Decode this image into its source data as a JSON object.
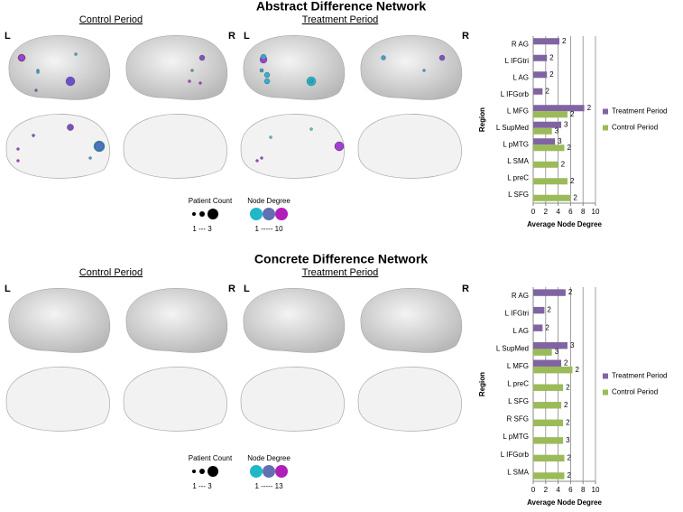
{
  "panels": [
    {
      "title": "Abstract Difference Network",
      "control_label": "Control Period",
      "treatment_label": "Treatment Period",
      "left": "L",
      "right": "R",
      "patient_count_title": "Patient Count",
      "patient_count_range": "1 --- 3",
      "node_degree_title": "Node Degree",
      "node_degree_range": "1 ----- 10"
    },
    {
      "title": "Concrete Difference Network",
      "control_label": "Control Period",
      "treatment_label": "Treatment Period",
      "left": "L",
      "right": "R",
      "patient_count_title": "Patient Count",
      "patient_count_range": "1 --- 3",
      "node_degree_title": "Node Degree",
      "node_degree_range": "1 ----- 13"
    }
  ],
  "chart_data": [
    {
      "type": "hbar",
      "x_label": "Average Node Degree",
      "y_label": "Region",
      "legend": "right",
      "grid": true,
      "categories": [
        "R AG",
        "L IFGtri",
        "L AG",
        "L IFGorb",
        "L MFG",
        "L SupMed",
        "L pMTG",
        "L SMA",
        "L preC",
        "L SFG"
      ],
      "series": [
        {
          "name": "Treatment Period",
          "color": "#8064a2",
          "values": [
            4.2,
            2.2,
            2.2,
            1.5,
            8.2,
            4.5,
            3.5,
            null,
            null,
            null
          ],
          "bar_labels": [
            2,
            2,
            2,
            2,
            2,
            3,
            3,
            null,
            null,
            null
          ]
        },
        {
          "name": "Control Period",
          "color": "#9bbb59",
          "values": [
            null,
            null,
            null,
            null,
            5.5,
            3,
            5,
            4,
            5.5,
            6
          ],
          "bar_labels": [
            null,
            null,
            null,
            null,
            2,
            3,
            2,
            2,
            2,
            2
          ]
        }
      ],
      "xlim": [
        0,
        10
      ],
      "xticks": [
        0,
        2,
        4,
        6,
        8,
        10
      ]
    },
    {
      "type": "hbar",
      "x_label": "Average Node Degree",
      "y_label": "Region",
      "legend": "right",
      "grid": true,
      "categories": [
        "R AG",
        "L IFGtri",
        "L AG",
        "L SupMed",
        "L MFG",
        "L preC",
        "L SFG",
        "R SFG",
        "L pMTG",
        "L IFGorb",
        "L SMA"
      ],
      "series": [
        {
          "name": "Treatment Period",
          "color": "#8064a2",
          "values": [
            5.2,
            1.8,
            1.5,
            5.5,
            4.5,
            null,
            null,
            null,
            null,
            null,
            null
          ],
          "bar_labels": [
            2,
            2,
            2,
            3,
            2,
            null,
            null,
            null,
            null,
            null,
            null
          ]
        },
        {
          "name": "Control Period",
          "color": "#9bbb59",
          "values": [
            null,
            null,
            null,
            3,
            6.3,
            4.8,
            4.5,
            4.8,
            4.8,
            5,
            5
          ],
          "bar_labels": [
            null,
            null,
            null,
            3,
            2,
            2,
            2,
            2,
            3,
            2,
            2
          ]
        }
      ],
      "xlim": [
        0,
        10
      ],
      "xticks": [
        0,
        2,
        4,
        6,
        8,
        10
      ]
    }
  ]
}
